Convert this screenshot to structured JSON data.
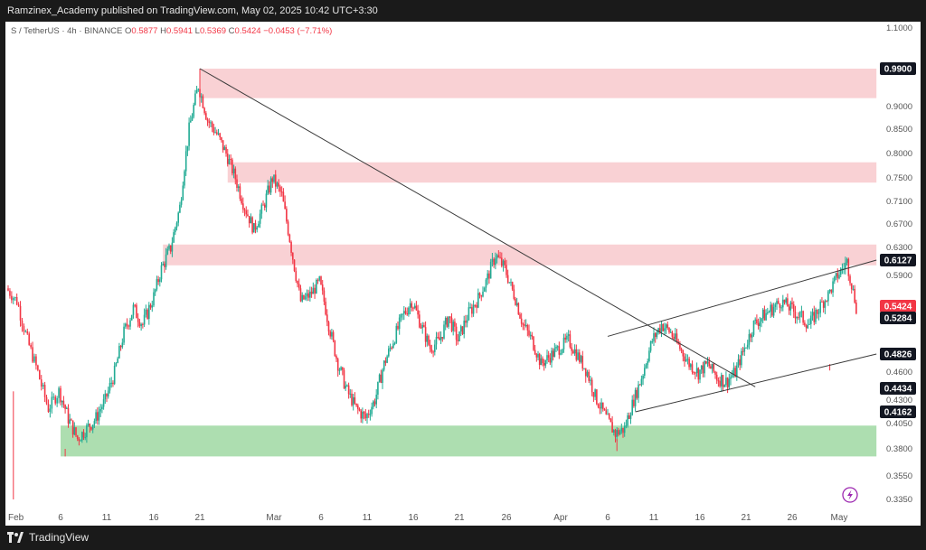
{
  "header": {
    "publisher_line": "Ramzinex_Academy published on TradingView.com, May 02, 2025 10:42 UTC+3:30"
  },
  "footer": {
    "brand": "TradingView"
  },
  "chart_data": {
    "type": "candlestick",
    "symbol_line": {
      "symbol": "S / TetherUS · 4h · BINANCE",
      "o_label": "O",
      "o": "0.5877",
      "h_label": "H",
      "h": "0.5941",
      "l_label": "L",
      "l": "0.5369",
      "c_label": "C",
      "c": "0.5424",
      "change": "−0.0453 (−7.71%)"
    },
    "x_labels": [
      "Feb",
      "6",
      "11",
      "16",
      "21",
      "Mar",
      "6",
      "11",
      "16",
      "21",
      "26",
      "Apr",
      "6",
      "11",
      "16",
      "21",
      "26",
      "May"
    ],
    "y_ticks": [
      "1.1000",
      "0.9000",
      "0.8500",
      "0.8000",
      "0.7500",
      "0.7100",
      "0.6700",
      "0.6300",
      "0.5900",
      "0.4600",
      "0.4300",
      "0.4050",
      "0.3800",
      "0.3550",
      "0.3350"
    ],
    "price_labels": [
      {
        "value": 0.99,
        "text": "0.9900",
        "style": "dark"
      },
      {
        "value": 0.6127,
        "text": "0.6127",
        "style": "dark"
      },
      {
        "value": 0.5424,
        "text": "0.5424",
        "style": "red"
      },
      {
        "value": 0.5284,
        "text": "0.5284",
        "style": "dark"
      },
      {
        "value": 0.4826,
        "text": "0.4826",
        "style": "dark"
      },
      {
        "value": 0.4434,
        "text": "0.4434",
        "style": "dark"
      },
      {
        "value": 0.4162,
        "text": "0.4162",
        "style": "dark"
      }
    ],
    "zones": [
      {
        "type": "resistance",
        "x_start": "Feb 21",
        "x_end": "May 5",
        "y_low": 0.92,
        "y_high": 0.99,
        "color": "#f8c9cd"
      },
      {
        "type": "resistance",
        "x_start": "Feb 24",
        "x_end": "May 5",
        "y_low": 0.742,
        "y_high": 0.782,
        "color": "#f8c9cd"
      },
      {
        "type": "resistance",
        "x_start": "Feb 17",
        "x_end": "May 5",
        "y_low": 0.605,
        "y_high": 0.635,
        "color": "#f8c9cd"
      },
      {
        "type": "support",
        "x_start": "Feb 6",
        "x_end": "May 5",
        "y_low": 0.373,
        "y_high": 0.403,
        "color": "#9fd8a2"
      }
    ],
    "trendlines": [
      {
        "name": "downtrend",
        "from": [
          "Feb 21",
          0.99
        ],
        "to": [
          "Apr 22",
          0.445
        ]
      },
      {
        "name": "channel-upper",
        "from": [
          "Apr 6",
          0.505
        ],
        "to": [
          "May 5",
          0.6127
        ]
      },
      {
        "name": "channel-lower",
        "from": [
          "Apr 9",
          0.4162
        ],
        "to": [
          "May 5",
          0.4826
        ]
      }
    ],
    "price_path_note": "approximate close path keyed to chart",
    "path": [
      [
        1,
        0.57
      ],
      [
        2,
        0.55
      ],
      [
        3,
        0.5
      ],
      [
        4,
        0.46
      ],
      [
        5,
        0.42
      ],
      [
        6,
        0.44
      ],
      [
        7,
        0.41
      ],
      [
        8,
        0.39
      ],
      [
        9,
        0.4
      ],
      [
        10,
        0.41
      ],
      [
        11,
        0.43
      ],
      [
        12,
        0.46
      ],
      [
        13,
        0.51
      ],
      [
        14,
        0.54
      ],
      [
        15,
        0.52
      ],
      [
        16,
        0.55
      ],
      [
        17,
        0.6
      ],
      [
        18,
        0.63
      ],
      [
        19,
        0.7
      ],
      [
        20,
        0.85
      ],
      [
        21,
        0.95
      ],
      [
        22,
        0.87
      ],
      [
        23,
        0.84
      ],
      [
        24,
        0.8
      ],
      [
        25,
        0.75
      ],
      [
        26,
        0.7
      ],
      [
        27,
        0.66
      ],
      [
        28,
        0.7
      ],
      [
        29,
        0.75
      ],
      [
        30,
        0.72
      ],
      [
        31,
        0.63
      ],
      [
        32,
        0.55
      ],
      [
        33,
        0.56
      ],
      [
        34,
        0.58
      ],
      [
        35,
        0.52
      ],
      [
        36,
        0.47
      ],
      [
        37,
        0.44
      ],
      [
        38,
        0.42
      ],
      [
        39,
        0.41
      ],
      [
        40,
        0.43
      ],
      [
        41,
        0.47
      ],
      [
        42,
        0.5
      ],
      [
        43,
        0.53
      ],
      [
        44,
        0.55
      ],
      [
        45,
        0.52
      ],
      [
        46,
        0.49
      ],
      [
        47,
        0.5
      ],
      [
        48,
        0.53
      ],
      [
        49,
        0.5
      ],
      [
        50,
        0.53
      ],
      [
        51,
        0.55
      ],
      [
        52,
        0.58
      ],
      [
        53,
        0.62
      ],
      [
        54,
        0.6
      ],
      [
        55,
        0.56
      ],
      [
        56,
        0.52
      ],
      [
        57,
        0.5
      ],
      [
        58,
        0.47
      ],
      [
        59,
        0.48
      ],
      [
        60,
        0.49
      ],
      [
        61,
        0.5
      ],
      [
        62,
        0.48
      ],
      [
        63,
        0.46
      ],
      [
        64,
        0.43
      ],
      [
        65,
        0.41
      ],
      [
        66,
        0.395
      ],
      [
        67,
        0.4
      ],
      [
        68,
        0.43
      ],
      [
        69,
        0.46
      ],
      [
        70,
        0.5
      ],
      [
        71,
        0.52
      ],
      [
        72,
        0.51
      ],
      [
        73,
        0.49
      ],
      [
        74,
        0.47
      ],
      [
        75,
        0.46
      ],
      [
        76,
        0.47
      ],
      [
        77,
        0.455
      ],
      [
        78,
        0.45
      ],
      [
        79,
        0.46
      ],
      [
        80,
        0.49
      ],
      [
        81,
        0.52
      ],
      [
        82,
        0.53
      ],
      [
        83,
        0.54
      ],
      [
        84,
        0.55
      ],
      [
        85,
        0.54
      ],
      [
        86,
        0.53
      ],
      [
        87,
        0.52
      ],
      [
        88,
        0.54
      ],
      [
        89,
        0.56
      ],
      [
        90,
        0.59
      ],
      [
        91,
        0.61
      ],
      [
        92,
        0.5424
      ]
    ]
  }
}
